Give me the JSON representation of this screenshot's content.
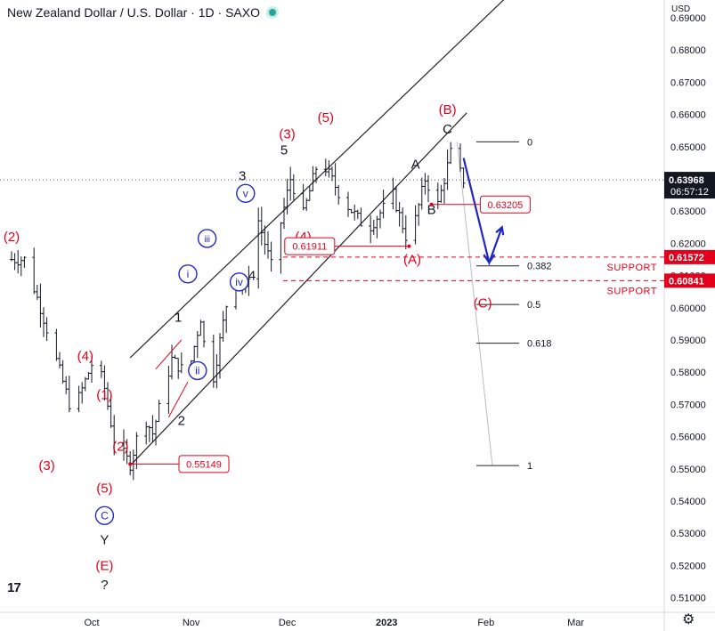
{
  "header": {
    "title": "New Zealand Dollar / U.S. Dollar · 1D · SAXO",
    "currency": "USD"
  },
  "footer": {
    "logo": "17",
    "settings_icon": "gear-icon"
  },
  "colors": {
    "wave_red": "#e3001b",
    "wave_blue": "#1e28c8",
    "support": "#e3001b",
    "bars": "#131722",
    "price_label": "#131722"
  },
  "price_tag": {
    "price": "0.63968",
    "countdown": "06:57:12"
  },
  "chart_data": {
    "type": "ohlc",
    "ylim": [
      0.505,
      0.695
    ],
    "y_ticks": [
      "0.69000",
      "0.68000",
      "0.67000",
      "0.66000",
      "0.65000",
      "0.64000",
      "0.63000",
      "0.62000",
      "0.61000",
      "0.60000",
      "0.59000",
      "0.58000",
      "0.57000",
      "0.56000",
      "0.55000",
      "0.54000",
      "0.53000",
      "0.52000",
      "0.51000"
    ],
    "x_ticks": [
      {
        "label": "Oct",
        "day": 0
      },
      {
        "label": "Nov",
        "day": 31
      },
      {
        "label": "Dec",
        "day": 61
      },
      {
        "label": "2023",
        "day": 92
      },
      {
        "label": "Feb",
        "day": 123
      },
      {
        "label": "Mar",
        "day": 151
      }
    ],
    "bars_range": {
      "start_day": -27,
      "end_day": 116
    },
    "pivots": [
      {
        "day": -21,
        "price": 0.615
      },
      {
        "day": -16,
        "price": 0.6
      },
      {
        "day": -9,
        "price": 0.577
      },
      {
        "day": -6,
        "price": 0.567
      },
      {
        "day": 1,
        "price": 0.585
      },
      {
        "day": 4,
        "price": 0.575
      },
      {
        "day": 7,
        "price": 0.559
      },
      {
        "day": 12,
        "price": 0.5515
      },
      {
        "day": 16,
        "price": 0.567
      },
      {
        "day": 19,
        "price": 0.561
      },
      {
        "day": 25,
        "price": 0.584
      },
      {
        "day": 30,
        "price": 0.579
      },
      {
        "day": 34,
        "price": 0.597
      },
      {
        "day": 37,
        "price": 0.573
      },
      {
        "day": 44,
        "price": 0.612
      },
      {
        "day": 48,
        "price": 0.605
      },
      {
        "day": 52,
        "price": 0.627
      },
      {
        "day": 56,
        "price": 0.613
      },
      {
        "day": 62,
        "price": 0.64
      },
      {
        "day": 66,
        "price": 0.629
      },
      {
        "day": 71,
        "price": 0.647
      },
      {
        "day": 78,
        "price": 0.634
      },
      {
        "day": 86,
        "price": 0.624
      },
      {
        "day": 94,
        "price": 0.635
      },
      {
        "day": 99,
        "price": 0.6191
      },
      {
        "day": 104,
        "price": 0.64
      },
      {
        "day": 108,
        "price": 0.632
      },
      {
        "day": 112,
        "price": 0.648
      },
      {
        "day": 116,
        "price": 0.6397
      }
    ],
    "wave_labels": [
      {
        "text": "(2)",
        "day": -25,
        "price": 0.622,
        "color": "red"
      },
      {
        "text": "(3)",
        "day": -14,
        "price": 0.551,
        "color": "red"
      },
      {
        "text": "(4)",
        "day": -2,
        "price": 0.585,
        "color": "red"
      },
      {
        "text": "(1)",
        "day": 4,
        "price": 0.573,
        "color": "red"
      },
      {
        "text": "(2)",
        "day": 9,
        "price": 0.557,
        "color": "red"
      },
      {
        "text": "(5)",
        "day": 4,
        "price": 0.544,
        "color": "red"
      },
      {
        "text": "C",
        "day": 4,
        "price": 0.5355,
        "color": "blue",
        "circle": true
      },
      {
        "text": "Y",
        "day": 4,
        "price": 0.528,
        "color": "black"
      },
      {
        "text": "(E)",
        "day": 4,
        "price": 0.52,
        "color": "red"
      },
      {
        "text": "?",
        "day": 4,
        "price": 0.514,
        "color": "black"
      },
      {
        "text": "1",
        "day": 27,
        "price": 0.597,
        "color": "black"
      },
      {
        "text": "2",
        "day": 28,
        "price": 0.565,
        "color": "black"
      },
      {
        "text": "i",
        "day": 30,
        "price": 0.6105,
        "color": "blue",
        "circle": true
      },
      {
        "text": "ii",
        "day": 33,
        "price": 0.5805,
        "color": "blue",
        "circle": true
      },
      {
        "text": "iii",
        "day": 36,
        "price": 0.6215,
        "color": "blue",
        "circle": true
      },
      {
        "text": "iv",
        "day": 46,
        "price": 0.608,
        "color": "blue",
        "circle": true
      },
      {
        "text": "v",
        "day": 48,
        "price": 0.6355,
        "color": "blue",
        "circle": true
      },
      {
        "text": "3",
        "day": 47,
        "price": 0.641,
        "color": "black"
      },
      {
        "text": "4",
        "day": 50,
        "price": 0.61,
        "color": "black"
      },
      {
        "text": "5",
        "day": 60,
        "price": 0.649,
        "color": "black"
      },
      {
        "text": "(3)",
        "day": 61,
        "price": 0.654,
        "color": "red"
      },
      {
        "text": "(5)",
        "day": 73,
        "price": 0.659,
        "color": "red"
      },
      {
        "text": "(4)",
        "day": 66,
        "price": 0.622,
        "color": "red"
      },
      {
        "text": "A",
        "day": 101,
        "price": 0.6445,
        "color": "black"
      },
      {
        "text": "B",
        "day": 106,
        "price": 0.6305,
        "color": "black"
      },
      {
        "text": "(A)",
        "day": 100,
        "price": 0.615,
        "color": "red"
      },
      {
        "text": "C",
        "day": 111,
        "price": 0.6555,
        "color": "black"
      },
      {
        "text": "(B)",
        "day": 111,
        "price": 0.6615,
        "color": "red"
      },
      {
        "text": "(C)",
        "day": 122,
        "price": 0.6015,
        "color": "red"
      }
    ],
    "price_boxes": [
      {
        "text": "0.55149",
        "anchor_day": 12,
        "price": 0.55149,
        "box_day": 35
      },
      {
        "text": "0.61911",
        "anchor_day": 99,
        "price": 0.61911,
        "box_day": 68
      },
      {
        "text": "0.63205",
        "anchor_day": 106,
        "price": 0.63205,
        "box_day": 129
      }
    ],
    "fibonacci": [
      {
        "level": "0",
        "price": 0.6515
      },
      {
        "level": "0.382",
        "price": 0.613
      },
      {
        "level": "0.5",
        "price": 0.601
      },
      {
        "level": "0.618",
        "price": 0.589
      },
      {
        "level": "1",
        "price": 0.551
      }
    ],
    "supports": [
      {
        "label": "SUPPORT",
        "price": 0.61572,
        "text": "0.61572"
      },
      {
        "label": "SUPPORT",
        "price": 0.60841,
        "text": "0.60841"
      }
    ],
    "channel": {
      "upper": [
        {
          "day": 12,
          "price": 0.5845
        },
        {
          "day": 130,
          "price": 0.697
        }
      ],
      "lower": [
        {
          "day": 12,
          "price": 0.551
        },
        {
          "day": 117,
          "price": 0.6605
        }
      ]
    },
    "projection": [
      {
        "day": 116,
        "price": 0.6465
      },
      {
        "day": 124,
        "price": 0.614
      },
      {
        "day": 128,
        "price": 0.625
      }
    ],
    "fib_diagonal": [
      {
        "day": 114,
        "price": 0.6515
      },
      {
        "day": 125,
        "price": 0.551
      }
    ]
  }
}
